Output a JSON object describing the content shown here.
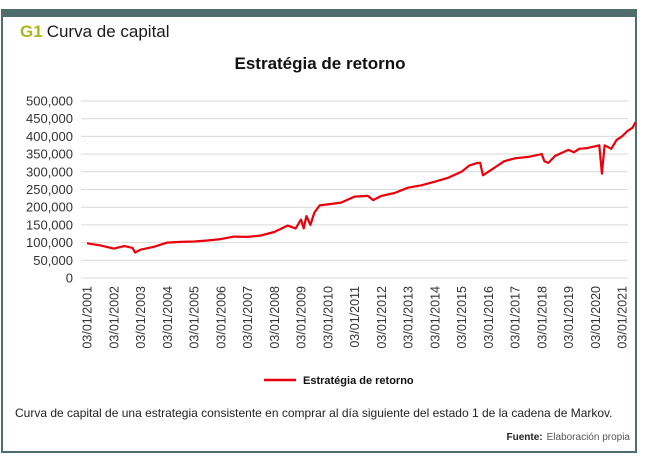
{
  "figure": {
    "tag": "G1",
    "title": "Curva de capital",
    "caption": "Curva de capital de una estrategia consistente en comprar al día siguiente del estado 1 de la cadena de Markov.",
    "source_label": "Fuente:",
    "source_value": "Elaboración propia"
  },
  "colors": {
    "frame": "#4f6d6c",
    "tag": "#a9b81a",
    "series": "#e8000b",
    "grid": "#d9d9d9"
  },
  "chart_data": {
    "type": "line",
    "title": "Estratégia de retorno",
    "xlabel": "",
    "ylabel": "",
    "ylim": [
      0,
      500000
    ],
    "yticks": [
      0,
      50000,
      100000,
      150000,
      200000,
      250000,
      300000,
      350000,
      400000,
      450000,
      500000
    ],
    "ytick_labels": [
      "0",
      "50,000",
      "100,000",
      "150,000",
      "200,000",
      "250,000",
      "300,000",
      "350,000",
      "400,000",
      "450,000",
      "500,000"
    ],
    "xtick_labels": [
      "03/01/2001",
      "03/01/2002",
      "03/01/2003",
      "03/01/2004",
      "03/01/2005",
      "03/01/2006",
      "03/01/2007",
      "03/01/2008",
      "03/01/2009",
      "03/01/2010",
      "03/01/2011",
      "03/01/2012",
      "03/01/2013",
      "03/01/2014",
      "03/01/2015",
      "03/01/2016",
      "03/01/2017",
      "03/01/2018",
      "03/01/2019",
      "03/01/2020",
      "03/01/2021"
    ],
    "grid": true,
    "legend_position": "bottom",
    "series": [
      {
        "name": "Estratégia de retorno",
        "x": [
          2001.0,
          2001.5,
          2002.0,
          2002.4,
          2002.7,
          2002.8,
          2003.0,
          2003.5,
          2004.0,
          2004.5,
          2005.0,
          2005.5,
          2006.0,
          2006.5,
          2007.0,
          2007.5,
          2008.0,
          2008.5,
          2008.8,
          2009.0,
          2009.1,
          2009.2,
          2009.35,
          2009.5,
          2009.7,
          2010.0,
          2010.5,
          2011.0,
          2011.5,
          2011.7,
          2012.0,
          2012.5,
          2013.0,
          2013.5,
          2014.0,
          2014.5,
          2015.0,
          2015.3,
          2015.6,
          2015.7,
          2015.8,
          2016.0,
          2016.3,
          2016.6,
          2017.0,
          2017.5,
          2018.0,
          2018.1,
          2018.25,
          2018.5,
          2019.0,
          2019.2,
          2019.4,
          2019.7,
          2020.0,
          2020.15,
          2020.25,
          2020.35,
          2020.6,
          2020.8,
          2021.0,
          2021.2,
          2021.4,
          2021.5
        ],
        "y": [
          98000,
          92000,
          83000,
          90000,
          85000,
          72000,
          80000,
          88000,
          100000,
          102000,
          103000,
          106000,
          110000,
          117000,
          116000,
          120000,
          130000,
          148000,
          140000,
          165000,
          140000,
          175000,
          150000,
          185000,
          205000,
          208000,
          213000,
          230000,
          232000,
          220000,
          232000,
          240000,
          255000,
          262000,
          272000,
          283000,
          300000,
          318000,
          325000,
          325000,
          290000,
          300000,
          315000,
          330000,
          338000,
          342000,
          350000,
          330000,
          325000,
          345000,
          362000,
          355000,
          365000,
          367000,
          372000,
          375000,
          295000,
          375000,
          365000,
          390000,
          400000,
          415000,
          425000,
          440000
        ]
      }
    ]
  }
}
